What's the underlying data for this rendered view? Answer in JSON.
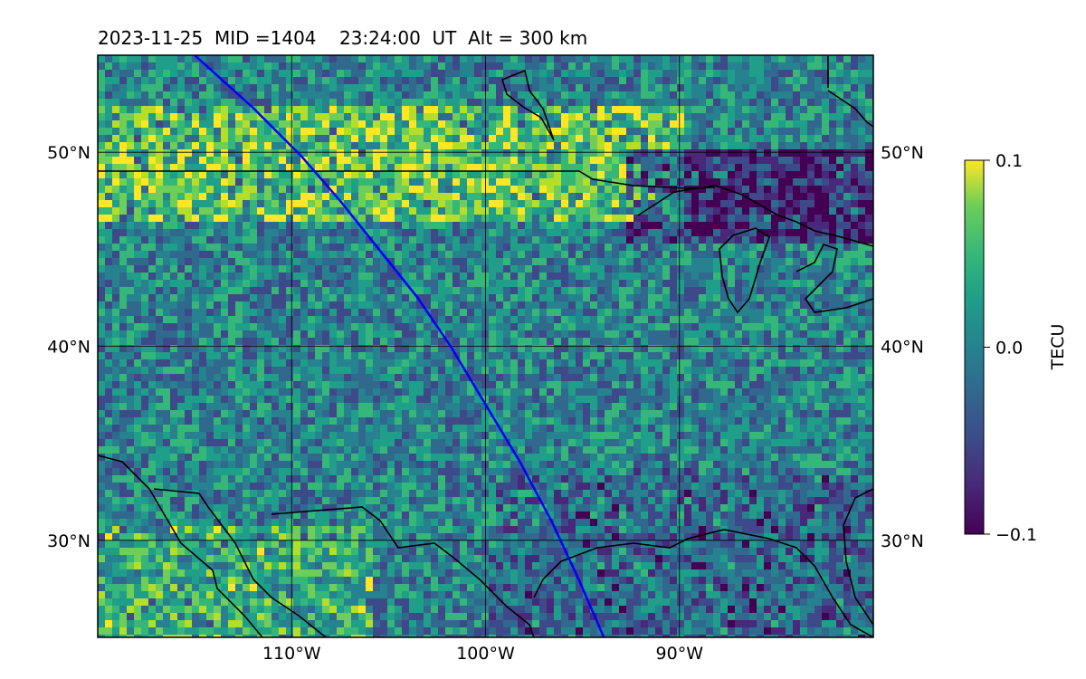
{
  "title": {
    "date": "2023-11-25",
    "mid": "MID =1404",
    "time": "23:24:00  UT",
    "alt": "Alt = 300 km"
  },
  "map": {
    "lon_range": [
      -120,
      -80
    ],
    "lat_range": [
      25,
      55
    ],
    "lat_ticks": [
      {
        "value": 30,
        "label": "30°N"
      },
      {
        "value": 40,
        "label": "40°N"
      },
      {
        "value": 50,
        "label": "50°N"
      }
    ],
    "lon_ticks": [
      {
        "value": -110,
        "label": "110°W"
      },
      {
        "value": -100,
        "label": "100°W"
      },
      {
        "value": -90,
        "label": "90°W"
      }
    ],
    "gridlines": true,
    "satellite_track_color": "#0000ff",
    "satellite_track": [
      [
        -115.0,
        55.0
      ],
      [
        -112.0,
        52.3
      ],
      [
        -109.5,
        49.8
      ],
      [
        -107.5,
        47.5
      ],
      [
        -105.5,
        45.0
      ],
      [
        -103.5,
        42.5
      ],
      [
        -101.8,
        40.0
      ],
      [
        -100.0,
        37.0
      ],
      [
        -98.2,
        34.0
      ],
      [
        -96.6,
        31.0
      ],
      [
        -95.2,
        28.0
      ],
      [
        -93.9,
        25.0
      ]
    ],
    "coastline_color": "#000000"
  },
  "colorbar": {
    "label": "TECU",
    "colormap": "viridis",
    "min": -0.1,
    "max": 0.1,
    "ticks": [
      {
        "value": 0.1,
        "label": "0.1"
      },
      {
        "value": 0.0,
        "label": "0.0"
      },
      {
        "value": -0.1,
        "label": "−0.1"
      }
    ]
  }
}
